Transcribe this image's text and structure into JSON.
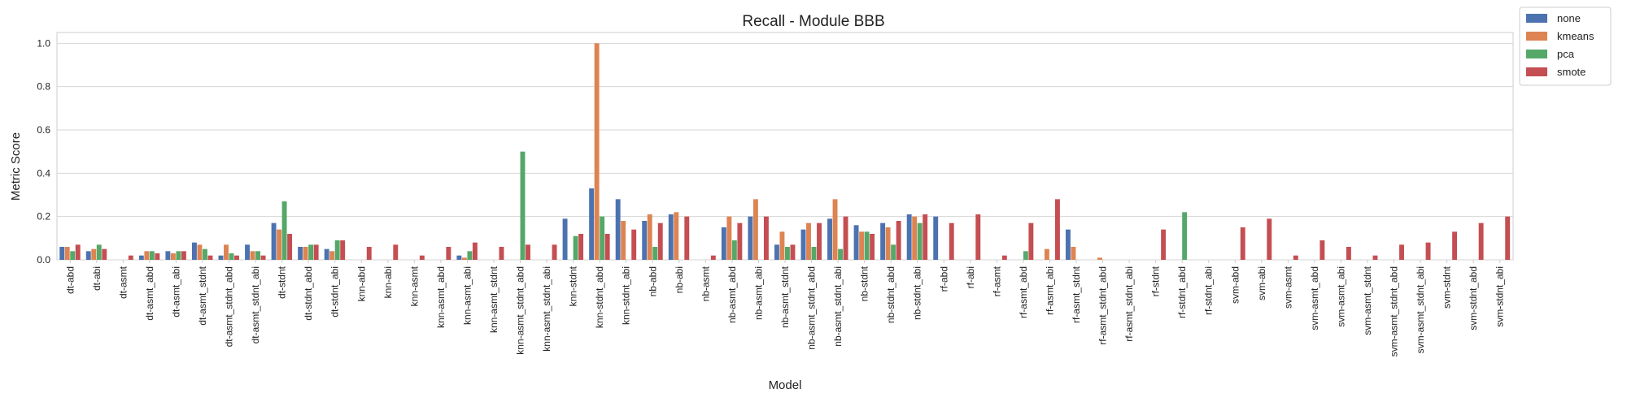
{
  "chart_data": {
    "type": "bar",
    "title": "Recall - Module BBB",
    "xlabel": "Model",
    "ylabel": "Metric Score",
    "ylim": [
      0,
      1.05
    ],
    "yticks": [
      "0.0",
      "0.2",
      "0.4",
      "0.6",
      "0.8",
      "1.0"
    ],
    "grid": true,
    "legend_position": "outside-top-right",
    "categories": [
      "dt-abd",
      "dt-abi",
      "dt-asmt",
      "dt-asmt_abd",
      "dt-asmt_abi",
      "dt-asmt_stdnt",
      "dt-asmt_stdnt_abd",
      "dt-asmt_stdnt_abi",
      "dt-stdnt",
      "dt-stdnt_abd",
      "dt-stdnt_abi",
      "knn-abd",
      "knn-abi",
      "knn-asmt",
      "knn-asmt_abd",
      "knn-asmt_abi",
      "knn-asmt_stdnt",
      "knn-asmt_stdnt_abd",
      "knn-asmt_stdnt_abi",
      "knn-stdnt",
      "knn-stdnt_abd",
      "knn-stdnt_abi",
      "nb-abd",
      "nb-abi",
      "nb-asmt",
      "nb-asmt_abd",
      "nb-asmt_abi",
      "nb-asmt_stdnt",
      "nb-asmt_stdnt_abd",
      "nb-asmt_stdnt_abi",
      "nb-stdnt",
      "nb-stdnt_abd",
      "nb-stdnt_abi",
      "rf-abd",
      "rf-abi",
      "rf-asmt",
      "rf-asmt_abd",
      "rf-asmt_abi",
      "rf-asmt_stdnt",
      "rf-asmt_stdnt_abd",
      "rf-asmt_stdnt_abi",
      "rf-stdnt",
      "rf-stdnt_abd",
      "rf-stdnt_abi",
      "svm-abd",
      "svm-abi",
      "svm-asmt",
      "svm-asmt_abd",
      "svm-asmt_abi",
      "svm-asmt_stdnt",
      "svm-asmt_stdnt_abd",
      "svm-asmt_stdnt_abi",
      "svm-stdnt",
      "svm-stdnt_abd",
      "svm-stdnt_abi"
    ],
    "series": [
      {
        "name": "none",
        "color": "#4c72b0",
        "values": [
          0.06,
          0.04,
          0,
          0.02,
          0.04,
          0.08,
          0.02,
          0.07,
          0.17,
          0.06,
          0.05,
          0,
          0,
          0,
          0,
          0.02,
          0,
          0,
          0,
          0.19,
          0.33,
          0.28,
          0.18,
          0.21,
          0,
          0.15,
          0.2,
          0.07,
          0.14,
          0.19,
          0.16,
          0.17,
          0.21,
          0.2,
          0,
          0,
          0,
          0,
          0.14,
          0,
          0,
          0,
          0,
          0,
          0,
          0,
          0,
          0,
          0,
          0,
          0,
          0,
          0,
          0,
          0
        ]
      },
      {
        "name": "kmeans",
        "color": "#dd8452",
        "values": [
          0.06,
          0.05,
          0,
          0.04,
          0.03,
          0.07,
          0.07,
          0.04,
          0.14,
          0.06,
          0.04,
          0,
          0,
          0,
          0,
          0.01,
          0,
          0,
          0,
          0,
          1.0,
          0.18,
          0.21,
          0.22,
          0,
          0.2,
          0.28,
          0.13,
          0.17,
          0.28,
          0.13,
          0.15,
          0.2,
          0,
          0,
          0,
          0,
          0.05,
          0.06,
          0.01,
          0,
          0,
          0,
          0,
          0,
          0,
          0,
          0,
          0,
          0,
          0,
          0,
          0,
          0,
          0
        ]
      },
      {
        "name": "pca",
        "color": "#55a868",
        "values": [
          0.04,
          0.07,
          0,
          0.04,
          0.04,
          0.05,
          0.03,
          0.04,
          0.27,
          0.07,
          0.09,
          0,
          0,
          0,
          0,
          0.04,
          0,
          0.5,
          0,
          0.11,
          0.2,
          0,
          0.06,
          0,
          0,
          0.09,
          0,
          0.06,
          0.06,
          0.05,
          0.13,
          0.07,
          0.17,
          0,
          0,
          0,
          0.04,
          0,
          0,
          0,
          0,
          0,
          0.22,
          0,
          0,
          0,
          0,
          0,
          0,
          0,
          0,
          0,
          0,
          0,
          0
        ]
      },
      {
        "name": "smote",
        "color": "#c44e52",
        "values": [
          0.07,
          0.05,
          0.02,
          0.03,
          0.04,
          0.02,
          0.02,
          0.02,
          0.12,
          0.07,
          0.09,
          0.06,
          0.07,
          0.02,
          0.06,
          0.08,
          0.06,
          0.07,
          0.07,
          0.12,
          0.12,
          0.14,
          0.17,
          0.2,
          0.02,
          0.17,
          0.2,
          0.07,
          0.17,
          0.2,
          0.12,
          0.18,
          0.21,
          0.17,
          0.21,
          0.02,
          0.17,
          0.28,
          0,
          0,
          0,
          0.14,
          0,
          0,
          0.15,
          0.19,
          0.02,
          0.09,
          0.06,
          0.02,
          0.07,
          0.08,
          0.13,
          0.17,
          0.2
        ]
      }
    ]
  }
}
